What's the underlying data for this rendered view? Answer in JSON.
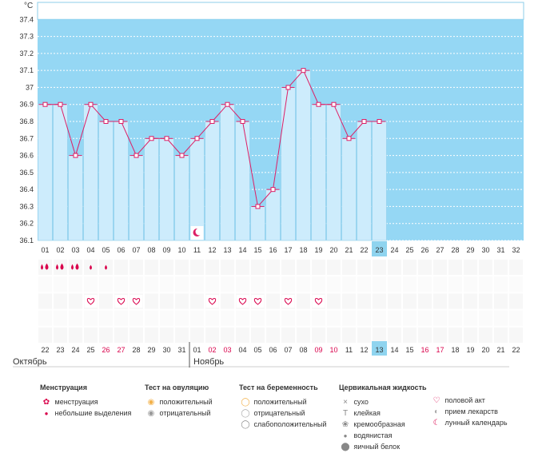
{
  "chart_data": {
    "type": "line",
    "title": "",
    "ylabel": "°C",
    "ylim": [
      36.1,
      37.5
    ],
    "y_ticks": [
      "37.4",
      "37.3",
      "37.2",
      "37.1",
      "37",
      "36.9",
      "36.8",
      "36.7",
      "36.6",
      "36.5",
      "36.4",
      "36.3",
      "36.2",
      "36.1"
    ],
    "y_tick_values": [
      37.4,
      37.3,
      37.2,
      37.1,
      37.0,
      36.9,
      36.8,
      36.7,
      36.6,
      36.5,
      36.4,
      36.3,
      36.2,
      36.1
    ],
    "cycle_days": [
      "01",
      "02",
      "03",
      "04",
      "05",
      "06",
      "07",
      "08",
      "09",
      "10",
      "11",
      "12",
      "13",
      "14",
      "15",
      "16",
      "17",
      "18",
      "19",
      "20",
      "21",
      "22",
      "23",
      "24",
      "25",
      "26",
      "27",
      "28",
      "29",
      "30",
      "31",
      "32"
    ],
    "temperatures": [
      36.9,
      36.9,
      36.6,
      36.9,
      36.8,
      36.8,
      36.6,
      36.7,
      36.7,
      36.6,
      36.7,
      36.8,
      36.9,
      36.8,
      36.3,
      36.4,
      37.0,
      37.1,
      36.9,
      36.9,
      36.7,
      36.8,
      36.8
    ],
    "current_cycle_day": "23",
    "dates": [
      "22",
      "23",
      "24",
      "25",
      "26",
      "27",
      "28",
      "29",
      "30",
      "31",
      "01",
      "02",
      "03",
      "04",
      "05",
      "06",
      "07",
      "08",
      "09",
      "10",
      "11",
      "12",
      "13",
      "14",
      "15",
      "16",
      "17",
      "18",
      "19",
      "20",
      "21",
      "22"
    ],
    "weekend_dates": [
      false,
      false,
      false,
      false,
      true,
      true,
      false,
      false,
      false,
      false,
      false,
      true,
      true,
      false,
      false,
      false,
      false,
      false,
      true,
      true,
      false,
      false,
      false,
      false,
      false,
      true,
      true,
      false,
      false,
      false,
      false,
      false
    ],
    "today_date": "13",
    "months": [
      "Октябрь",
      "Ноябрь"
    ],
    "menstruation_days": [
      1,
      2,
      3,
      4,
      5
    ],
    "menstruation_kind": [
      "heavy",
      "heavy",
      "heavy",
      "light",
      "light"
    ],
    "intercourse_days": [
      4,
      6,
      7,
      12,
      14,
      15,
      17,
      19
    ],
    "lunar_days": [
      11
    ]
  },
  "colors": {
    "sky": "#95d7f4",
    "bar_fill": "#cdecfc",
    "bar_stroke": "#8ccde9",
    "line": "#dd1f66",
    "highlight": "#8fd4ef",
    "weekend": "#d9004b",
    "legend_pink": "#d9004b"
  },
  "legend": {
    "menstruation": {
      "title": "Менструация",
      "items": [
        "менструация",
        "небольшие выделения"
      ]
    },
    "ovulation": {
      "title": "Тест на овуляцию",
      "items": [
        "положительный",
        "отрицательный"
      ]
    },
    "pregnancy": {
      "title": "Тест на беременность",
      "items": [
        "положительный",
        "отрицательный",
        "слабоположительный"
      ]
    },
    "cervical": {
      "title": "Цервикальная жидкость",
      "items": [
        "сухо",
        "клейкая",
        "кремообразная",
        "водянистая",
        "яичный белок"
      ]
    },
    "other": {
      "items": [
        "половой акт",
        "прием лекарств",
        "лунный календарь"
      ]
    }
  }
}
